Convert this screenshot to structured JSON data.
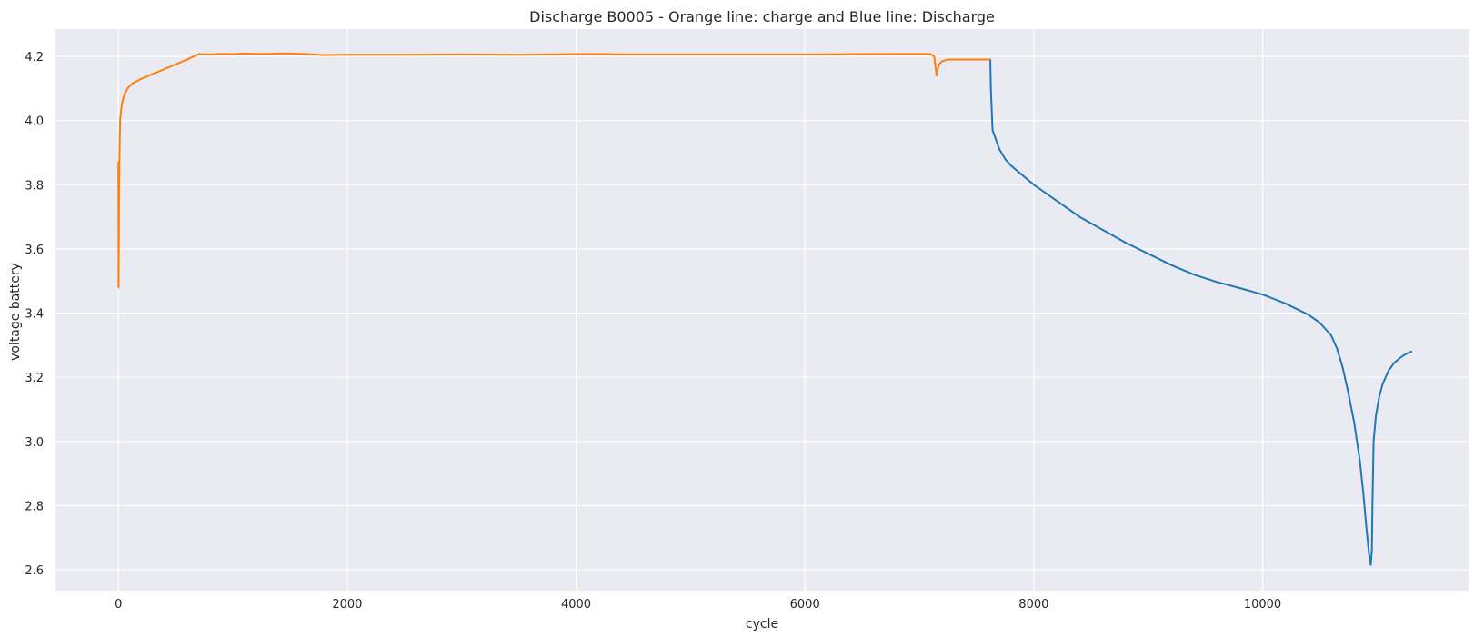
{
  "chart_data": {
    "type": "line",
    "title": "Discharge B0005 - Orange line: charge and  Blue line: Discharge",
    "xlabel": "cycle",
    "ylabel": "voltage battery",
    "xlim": [
      -550,
      11800
    ],
    "ylim": [
      2.535,
      4.285
    ],
    "xticks": [
      0,
      2000,
      4000,
      6000,
      8000,
      10000
    ],
    "yticks": [
      2.6,
      2.8,
      3.0,
      3.2,
      3.4,
      3.6,
      3.8,
      4.0,
      4.2
    ],
    "grid": true,
    "background": "#eaeaf2",
    "series": [
      {
        "color": "#1f77b4",
        "x": [
          7615,
          7620,
          7625,
          7640,
          7660,
          7700,
          7750,
          7800,
          7900,
          8000,
          8200,
          8400,
          8600,
          8800,
          9000,
          9200,
          9400,
          9600,
          9800,
          10000,
          10200,
          10400,
          10500,
          10600,
          10650,
          10700,
          10750,
          10800,
          10850,
          10880,
          10910,
          10930,
          10945,
          10955,
          10960,
          10970,
          10990,
          11020,
          11050,
          11100,
          11150,
          11200,
          11250,
          11300
        ],
        "y": [
          4.19,
          4.19,
          4.1,
          3.97,
          3.95,
          3.91,
          3.88,
          3.86,
          3.83,
          3.8,
          3.75,
          3.7,
          3.66,
          3.62,
          3.585,
          3.55,
          3.52,
          3.497,
          3.478,
          3.458,
          3.43,
          3.395,
          3.37,
          3.33,
          3.29,
          3.23,
          3.15,
          3.06,
          2.94,
          2.84,
          2.72,
          2.65,
          2.615,
          2.66,
          2.8,
          3.0,
          3.08,
          3.14,
          3.18,
          3.22,
          3.245,
          3.26,
          3.272,
          3.28
        ]
      },
      {
        "color": "#ff7f0e",
        "x": [
          0,
          2,
          5,
          10,
          15,
          20,
          30,
          50,
          80,
          120,
          200,
          300,
          400,
          500,
          600,
          700,
          800,
          900,
          1000,
          1100,
          1200,
          1300,
          1400,
          1500,
          1600,
          1700,
          1800,
          1900,
          2000,
          2500,
          3000,
          3500,
          4000,
          4200,
          4500,
          5000,
          5500,
          6000,
          6500,
          7000,
          7100,
          7130,
          7150,
          7170,
          7200,
          7250,
          7300,
          7400,
          7500,
          7600,
          7615
        ],
        "y": [
          3.87,
          3.48,
          3.7,
          3.9,
          4.0,
          4.02,
          4.05,
          4.08,
          4.1,
          4.115,
          4.13,
          4.145,
          4.16,
          4.175,
          4.19,
          4.207,
          4.206,
          4.208,
          4.207,
          4.209,
          4.208,
          4.208,
          4.209,
          4.209,
          4.208,
          4.206,
          4.204,
          4.205,
          4.205,
          4.205,
          4.206,
          4.205,
          4.207,
          4.207,
          4.206,
          4.206,
          4.206,
          4.206,
          4.207,
          4.208,
          4.207,
          4.2,
          4.14,
          4.175,
          4.185,
          4.19,
          4.19,
          4.19,
          4.19,
          4.19,
          4.19
        ]
      }
    ]
  }
}
